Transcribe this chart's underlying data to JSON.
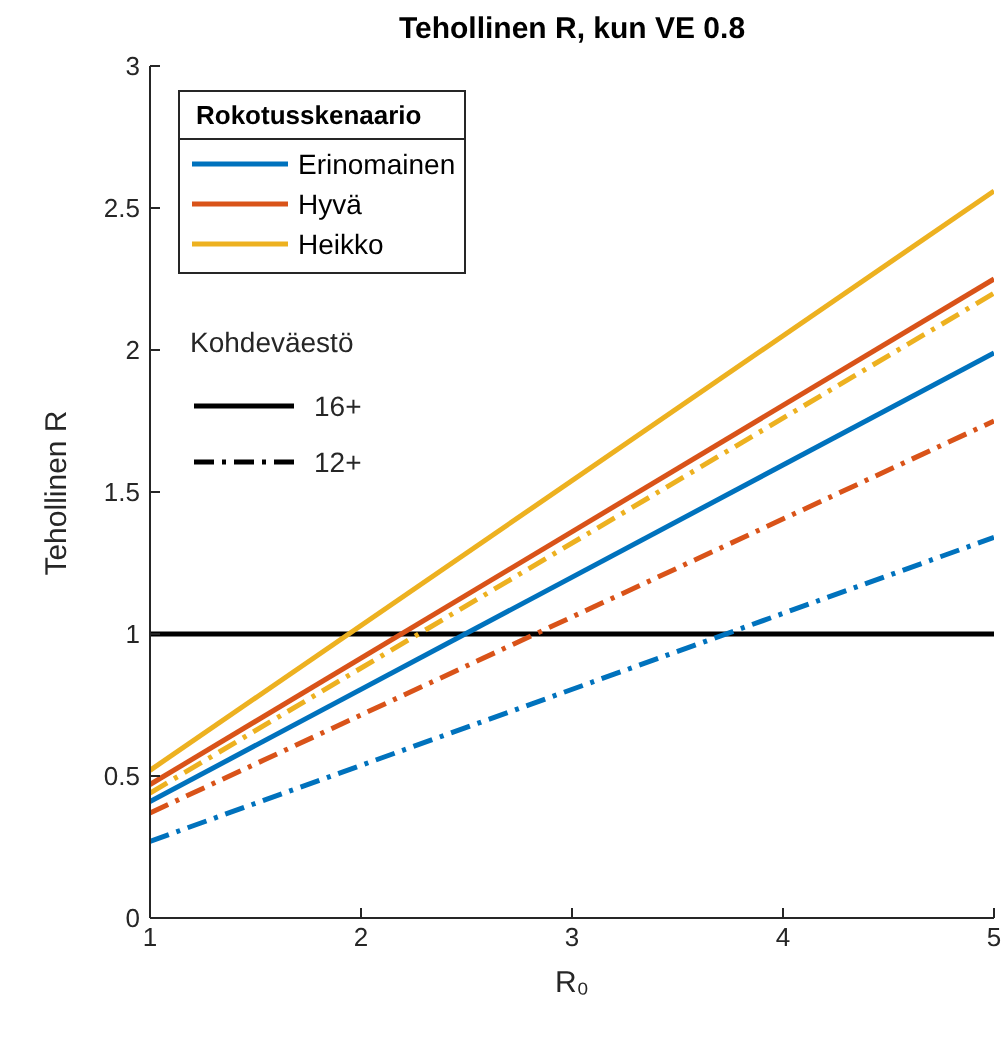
{
  "chart_data": {
    "type": "line",
    "title": "Tehollinen R, kun VE 0.8",
    "xlabel": "R₀",
    "ylabel": "Tehollinen R",
    "legend_title": "Rokotusskenaario",
    "x": [
      1,
      5
    ],
    "series": [
      {
        "name": "Erinomainen",
        "color": "#0072bd",
        "values": [
          0.41,
          1.99
        ],
        "line_style": "solid"
      },
      {
        "name": "Hyvä",
        "color": "#d95319",
        "values": [
          0.47,
          2.25
        ],
        "line_style": "solid"
      },
      {
        "name": "Heikko",
        "color": "#edb120",
        "values": [
          0.52,
          2.56
        ],
        "line_style": "solid"
      },
      {
        "color": "#0072bd",
        "values": [
          0.27,
          1.34
        ],
        "line_style": "dashed"
      },
      {
        "color": "#d95319",
        "values": [
          0.37,
          1.75
        ],
        "line_style": "dashed"
      },
      {
        "color": "#edb120",
        "values": [
          0.44,
          2.2
        ],
        "line_style": "dashed"
      }
    ],
    "xlim": [
      1,
      5
    ],
    "xticks": [
      1,
      2,
      3,
      4,
      5
    ],
    "ylim": [
      0,
      3
    ],
    "yticks": [
      0,
      0.5,
      1,
      1.5,
      2,
      2.5,
      3
    ],
    "ref_lines": [
      {
        "axis": "y",
        "value": 1,
        "color": "#000000"
      }
    ],
    "annotations": [
      "Kohdeväestö",
      "16+",
      "12+"
    ],
    "legend": "top left",
    "grid": false,
    "marker": "none"
  }
}
